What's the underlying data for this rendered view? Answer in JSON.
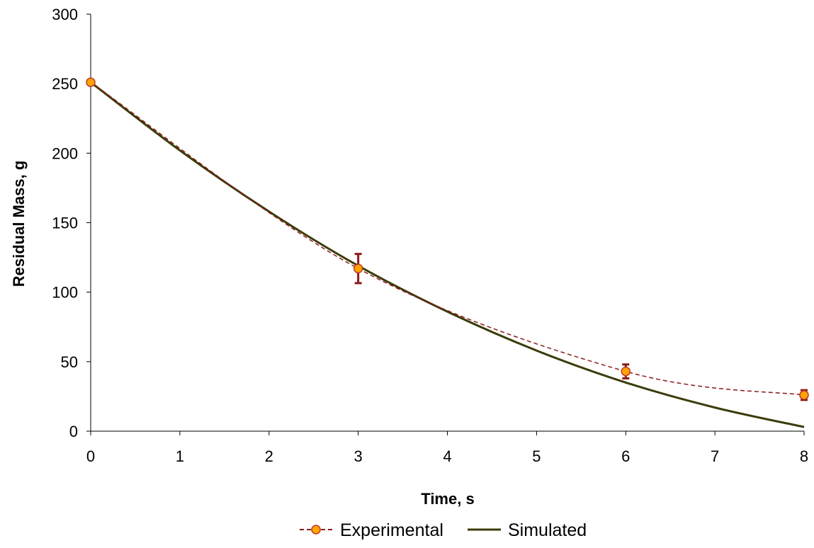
{
  "chart_data": {
    "type": "line",
    "xlabel": "Time, s",
    "ylabel": "Residual Mass, g",
    "xlim": [
      0,
      8
    ],
    "ylim": [
      0,
      300
    ],
    "xticks": [
      0,
      1,
      2,
      3,
      4,
      5,
      6,
      7,
      8
    ],
    "yticks": [
      0,
      50,
      100,
      150,
      200,
      250,
      300
    ],
    "grid": false,
    "legend_position": "bottom",
    "series": [
      {
        "name": "Experimental",
        "style": "dashed-with-markers",
        "color": "#8B1A1A",
        "marker_fill": "#FFA500",
        "marker_edge": "#C0392B",
        "x": [
          0,
          3,
          6,
          8
        ],
        "y": [
          251,
          117,
          43,
          26
        ],
        "error": [
          0,
          10.5,
          5,
          3.5
        ]
      },
      {
        "name": "Simulated",
        "style": "solid",
        "color": "#3B3B0A",
        "x": [
          0,
          1,
          2,
          3,
          4,
          5,
          6,
          7,
          8
        ],
        "y": [
          251,
          202,
          158,
          119,
          86,
          58,
          35,
          17,
          3
        ]
      }
    ]
  }
}
